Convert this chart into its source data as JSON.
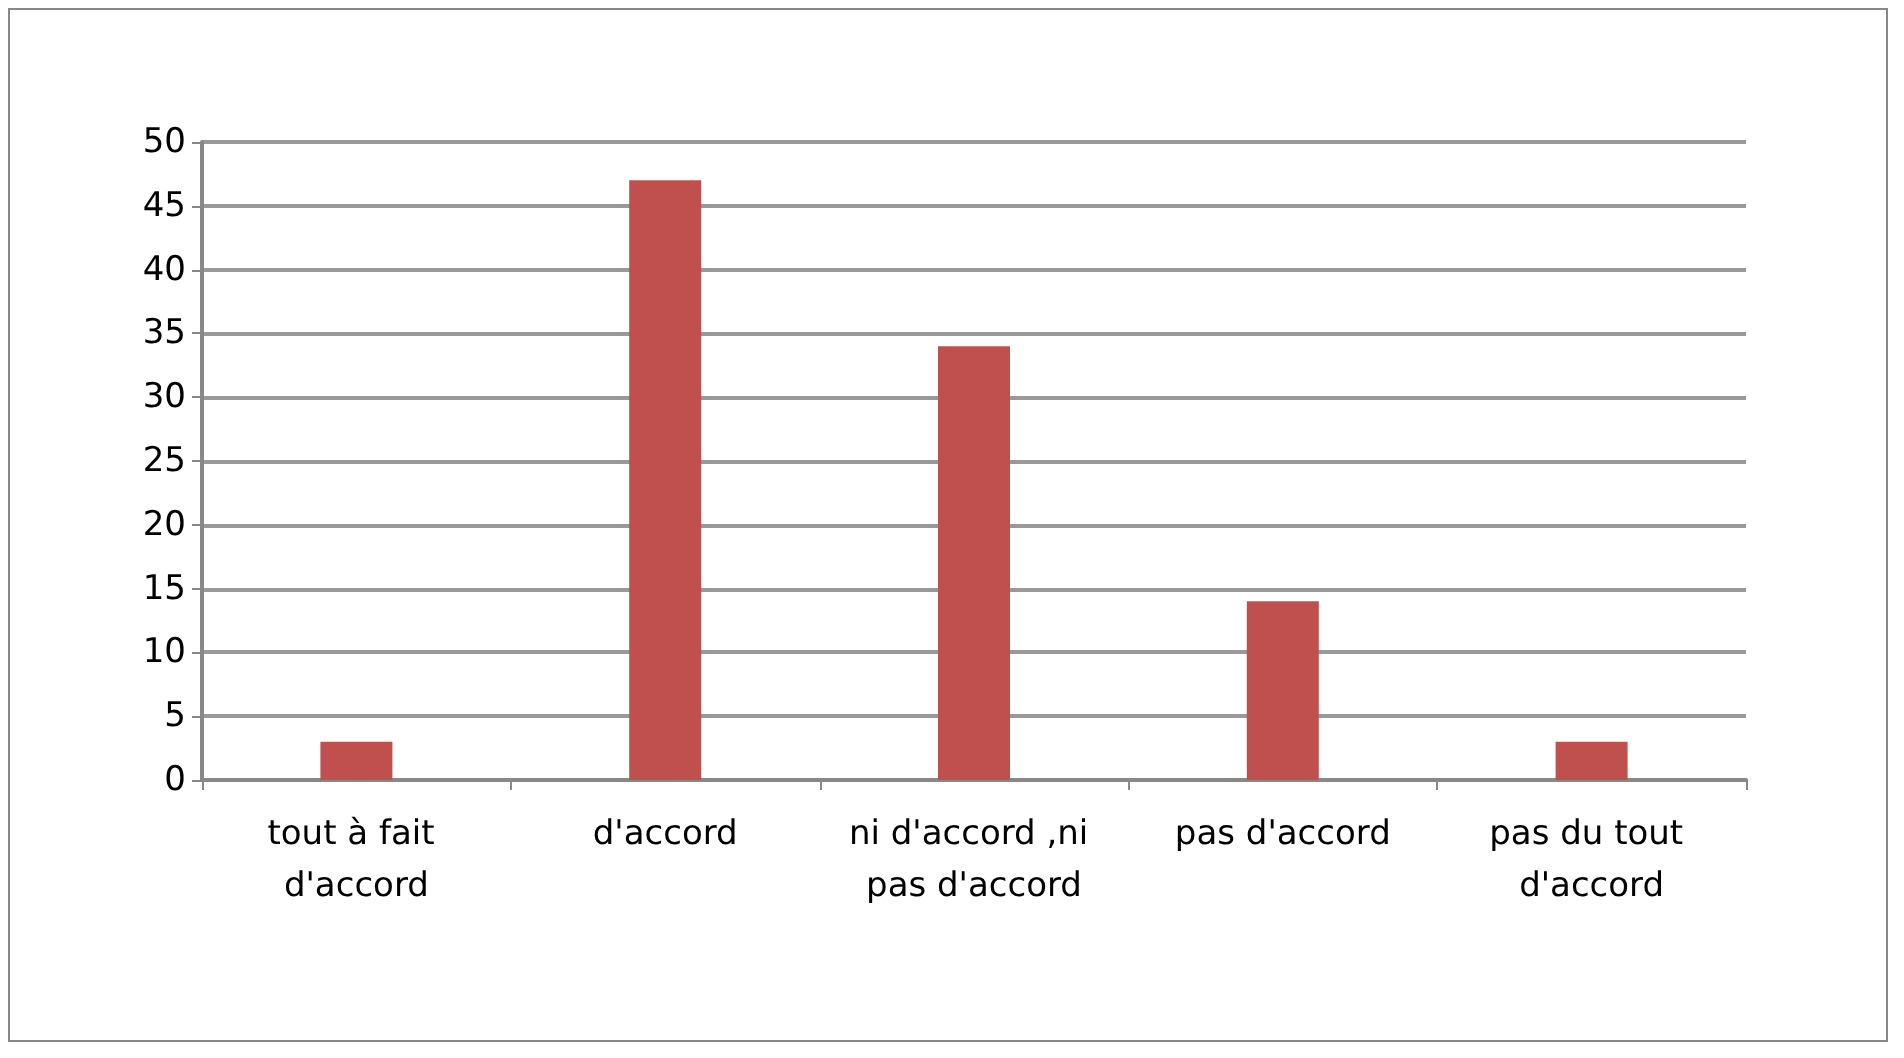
{
  "chart_data": {
    "type": "bar",
    "categories": [
      "tout à fait d'accord",
      "d'accord",
      "ni d'accord ,ni pas d'accord",
      "pas d'accord",
      "pas du tout d'accord"
    ],
    "values": [
      3,
      47,
      34,
      14,
      3
    ],
    "color": "#c0504d",
    "ylim": [
      0,
      50
    ],
    "yticks": [
      0,
      5,
      10,
      15,
      20,
      25,
      30,
      35,
      40,
      45,
      50
    ],
    "grid": "y"
  }
}
